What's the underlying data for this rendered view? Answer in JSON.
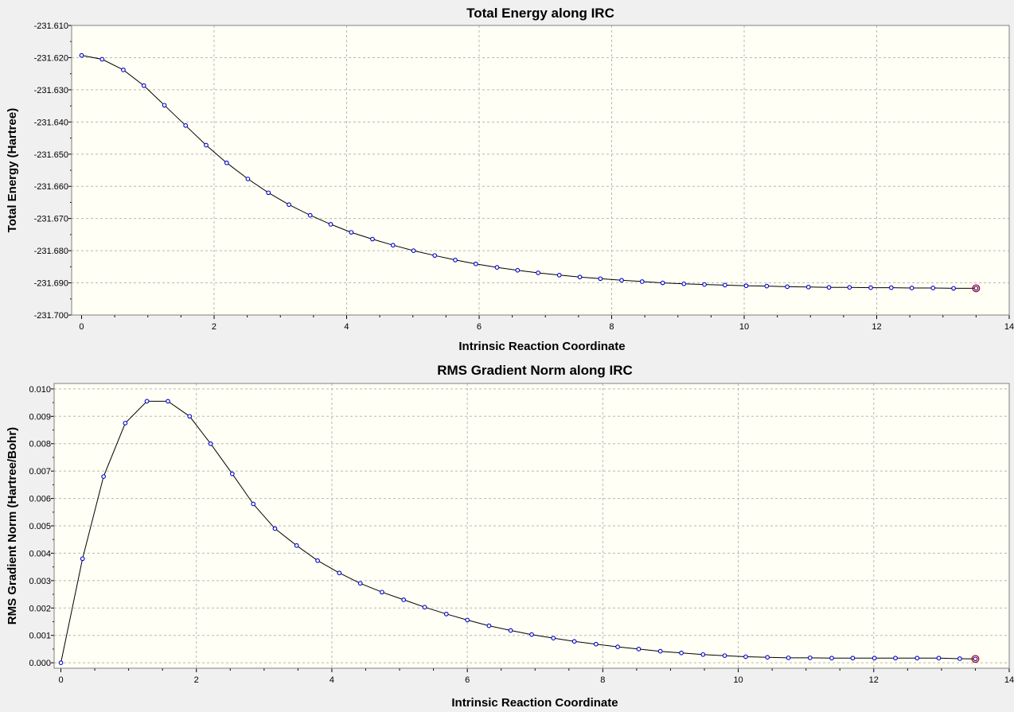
{
  "window": {
    "background": "#f0f0f0",
    "plot_background": "#fffff5",
    "grid_color": "#b8b8b8",
    "line_color": "#000000",
    "marker_color": "#0000cc",
    "highlight_marker_color": "#c00000"
  },
  "chart_data": [
    {
      "type": "line",
      "title": "Total Energy along IRC",
      "xlabel": "Intrinsic Reaction Coordinate",
      "ylabel": "Total Energy (Hartree)",
      "xlim": [
        -0.15,
        14.0
      ],
      "ylim": [
        -231.7,
        -231.61
      ],
      "xticks": [
        0,
        2,
        4,
        6,
        8,
        10,
        12,
        14
      ],
      "xtick_labels": [
        "0",
        "2",
        "4",
        "6",
        "8",
        "10",
        "12",
        "14"
      ],
      "yticks": [
        -231.61,
        -231.62,
        -231.63,
        -231.64,
        -231.65,
        -231.66,
        -231.67,
        -231.68,
        -231.69,
        -231.7
      ],
      "ytick_labels": [
        "-231.610",
        "-231.620",
        "-231.630",
        "-231.640",
        "-231.650",
        "-231.660",
        "-231.670",
        "-231.680",
        "-231.690",
        "-231.700"
      ],
      "grid": true,
      "markers": true,
      "highlight": "last",
      "x": [
        0,
        0.31,
        0.63,
        0.94,
        1.25,
        1.57,
        1.88,
        2.19,
        2.51,
        2.82,
        3.13,
        3.45,
        3.76,
        4.07,
        4.39,
        4.7,
        5.01,
        5.33,
        5.64,
        5.95,
        6.27,
        6.58,
        6.89,
        7.21,
        7.52,
        7.83,
        8.15,
        8.46,
        8.77,
        9.09,
        9.4,
        9.71,
        10.03,
        10.34,
        10.65,
        10.97,
        11.28,
        11.59,
        11.91,
        12.22,
        12.53,
        12.85,
        13.16,
        13.5
      ],
      "y": [
        -231.6193,
        -231.6205,
        -231.6238,
        -231.6287,
        -231.6348,
        -231.6411,
        -231.6472,
        -231.6527,
        -231.6577,
        -231.662,
        -231.6657,
        -231.669,
        -231.6718,
        -231.6743,
        -231.6764,
        -231.6783,
        -231.68,
        -231.6815,
        -231.6829,
        -231.6841,
        -231.6852,
        -231.6861,
        -231.6869,
        -231.6876,
        -231.6882,
        -231.6887,
        -231.6892,
        -231.6896,
        -231.69,
        -231.6903,
        -231.6905,
        -231.6907,
        -231.6909,
        -231.691,
        -231.6912,
        -231.6913,
        -231.6914,
        -231.6914,
        -231.6915,
        -231.6915,
        -231.6916,
        -231.6916,
        -231.6917,
        -231.6917
      ]
    },
    {
      "type": "line",
      "title": "RMS Gradient Norm along IRC",
      "xlabel": "Intrinsic Reaction Coordinate",
      "ylabel": "RMS Gradient Norm (Hartree/Bohr)",
      "xlim": [
        -0.1,
        14.0
      ],
      "ylim": [
        -0.0002,
        0.0102
      ],
      "xticks": [
        0,
        2,
        4,
        6,
        8,
        10,
        12,
        14
      ],
      "xtick_labels": [
        "0",
        "2",
        "4",
        "6",
        "8",
        "10",
        "12",
        "14"
      ],
      "yticks": [
        0.0,
        0.001,
        0.002,
        0.003,
        0.004,
        0.005,
        0.006,
        0.007,
        0.008,
        0.009,
        0.01
      ],
      "ytick_labels": [
        "0.000",
        "0.001",
        "0.002",
        "0.003",
        "0.004",
        "0.005",
        "0.006",
        "0.007",
        "0.008",
        "0.009",
        "0.010"
      ],
      "grid": true,
      "markers": true,
      "highlight": "last",
      "x": [
        0,
        0.32,
        0.63,
        0.95,
        1.27,
        1.58,
        1.9,
        2.21,
        2.53,
        2.84,
        3.16,
        3.48,
        3.79,
        4.11,
        4.42,
        4.74,
        5.06,
        5.37,
        5.69,
        6.0,
        6.32,
        6.64,
        6.95,
        7.27,
        7.58,
        7.9,
        8.22,
        8.53,
        8.85,
        9.16,
        9.48,
        9.8,
        10.11,
        10.43,
        10.74,
        11.06,
        11.38,
        11.69,
        12.01,
        12.32,
        12.64,
        12.96,
        13.27,
        13.5
      ],
      "y": [
        0.0,
        0.0038,
        0.0068,
        0.00875,
        0.00955,
        0.00955,
        0.009,
        0.008,
        0.0069,
        0.0058,
        0.0049,
        0.00428,
        0.00373,
        0.00328,
        0.0029,
        0.00258,
        0.0023,
        0.00203,
        0.00178,
        0.00156,
        0.00135,
        0.00118,
        0.00103,
        0.0009,
        0.00078,
        0.00068,
        0.00058,
        0.0005,
        0.00042,
        0.00036,
        0.0003,
        0.00026,
        0.00022,
        0.0002,
        0.00018,
        0.00018,
        0.00017,
        0.00017,
        0.00017,
        0.00017,
        0.00017,
        0.00017,
        0.00015,
        0.00014
      ]
    }
  ]
}
